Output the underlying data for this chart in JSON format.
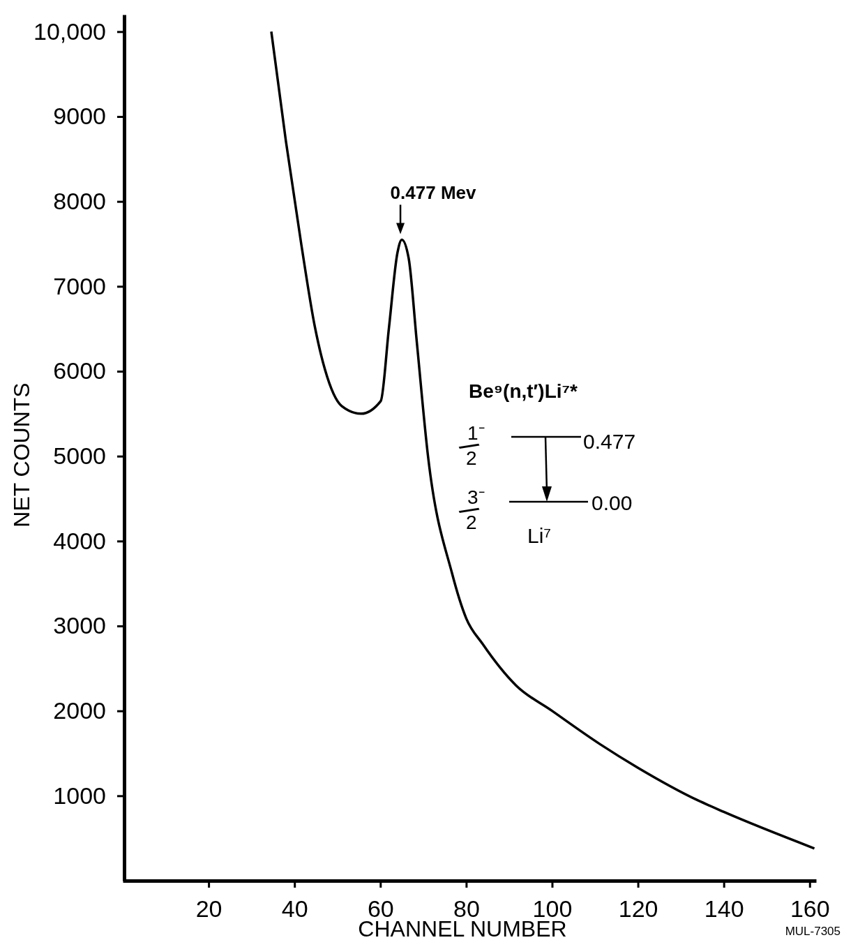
{
  "chart_data": {
    "type": "line",
    "xlabel": "CHANNEL NUMBER",
    "ylabel": "NET COUNTS",
    "xlim": [
      0,
      161.5
    ],
    "ylim": [
      0,
      10200
    ],
    "xticks": [
      20,
      40,
      60,
      80,
      100,
      120,
      140,
      160
    ],
    "yticks": [
      1000,
      2000,
      3000,
      4000,
      5000,
      6000,
      7000,
      8000,
      9000,
      {
        "value": 10000,
        "label": "10,000"
      }
    ],
    "grid": false,
    "marker": "none",
    "line_style": "solid",
    "series": [
      {
        "color": "#000000",
        "x": [
          34.6,
          38,
          41.6,
          44.8,
          47.1,
          51,
          55.5,
          60.1,
          62,
          64,
          65,
          66.6,
          68.5,
          71.1,
          76.7,
          80,
          83.8,
          91.6,
          100,
          111.1,
          120,
          133.8,
          140,
          161.1
        ],
        "values": [
          10000,
          8710,
          7490,
          6510,
          6020,
          5590,
          5500,
          5650,
          6510,
          7400,
          7550,
          7330,
          6340,
          5000,
          3620,
          3090,
          2790,
          2300,
          2000,
          1610,
          1330,
          950,
          810,
          380
        ]
      }
    ],
    "annotations": [
      {
        "text": "0.477 Mev",
        "x": 65,
        "y": 7550
      },
      "Be⁹(n,t′)Li⁷*",
      "1⁻/2",
      "3⁻/2",
      "0.477",
      "0.00",
      "Li⁷",
      "MUL-7305"
    ]
  }
}
